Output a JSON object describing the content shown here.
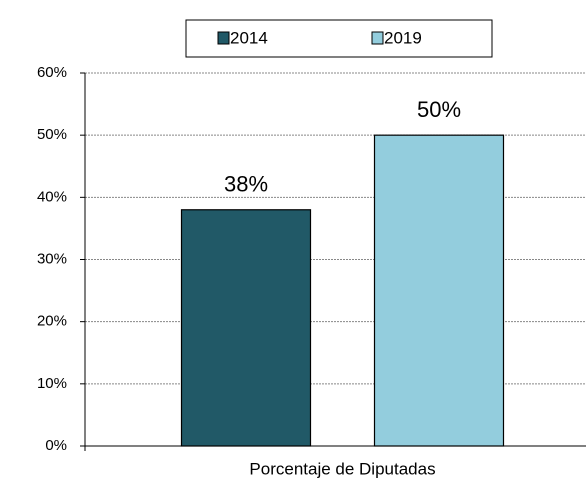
{
  "chart_data": {
    "type": "bar",
    "categories": [
      "Porcentaje de Diputadas"
    ],
    "series": [
      {
        "name": "2014",
        "color": "#215967",
        "values": [
          38
        ],
        "value_labels": [
          "38%"
        ]
      },
      {
        "name": "2019",
        "color": "#93cddd",
        "values": [
          50
        ],
        "value_labels": [
          "50%"
        ]
      }
    ],
    "ylim": [
      0,
      60
    ],
    "yticks": [
      {
        "value": 0,
        "label": "0%"
      },
      {
        "value": 10,
        "label": "10%"
      },
      {
        "value": 20,
        "label": "20%"
      },
      {
        "value": 30,
        "label": "30%"
      },
      {
        "value": 40,
        "label": "40%"
      },
      {
        "value": 50,
        "label": "50%"
      },
      {
        "value": 60,
        "label": "60%"
      }
    ],
    "grid": true,
    "legend": "top"
  }
}
